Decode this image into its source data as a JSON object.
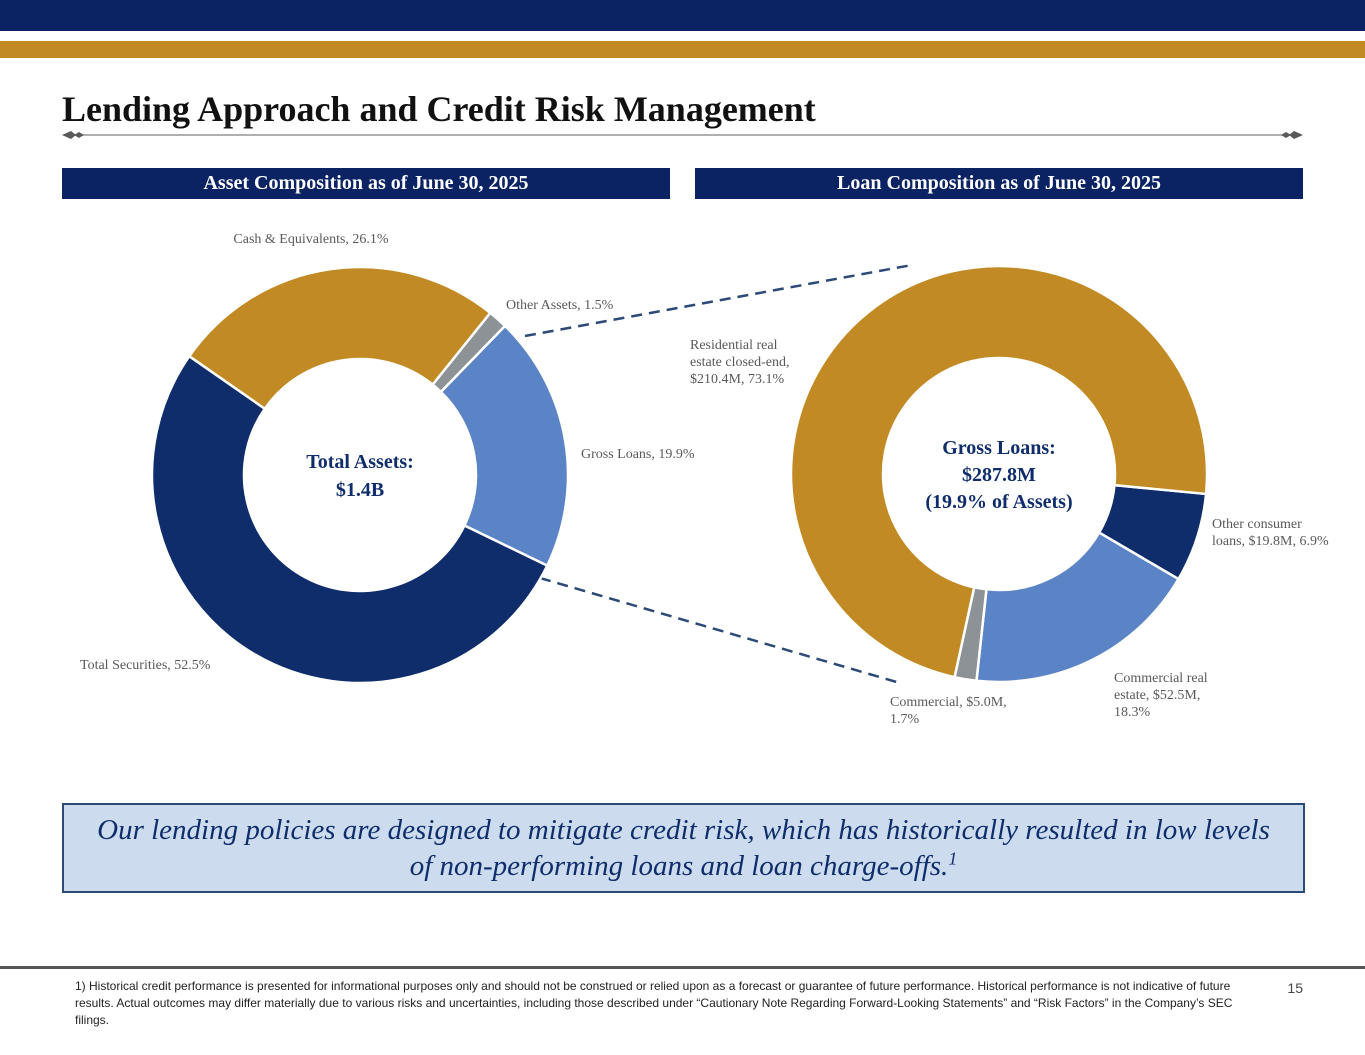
{
  "slide": {
    "title": "Lending Approach and Credit Risk Management",
    "left_header": "Asset Composition as of June 30, 2025",
    "right_header": "Loan Composition as of June 30, 2025",
    "callout": {
      "text": "Our lending policies are designed to mitigate credit risk, which has historically resulted in low levels of non-performing loans and loan charge-offs.",
      "superscript": "1"
    },
    "footnote": "1) Historical credit performance is presented for informational purposes only and should not be construed or relied upon as a forecast or guarantee of future performance. Historical performance is not indicative of future results. Actual outcomes may differ materially due to various risks and uncertainties, including those described under “Cautionary Note Regarding Forward-Looking Statements” and “Risk Factors” in the Company’s SEC filings.",
    "page_number": "15"
  },
  "colors": {
    "navy": "#0b2263",
    "gold": "#c28a25",
    "light_blue": "#5b84c7",
    "gray": "#8d9296",
    "callout_fill": "#ccdcee"
  },
  "chart_data": [
    {
      "type": "pie",
      "variant": "donut",
      "title": "Asset Composition as of June 30, 2025",
      "center_label": [
        "Total Assets:",
        "$1.4B"
      ],
      "slices": [
        {
          "label": "Gross Loans, 19.9%",
          "value": 19.9,
          "color": "#5b84c7"
        },
        {
          "label": "Total Securities, 52.5%",
          "value": 52.5,
          "color": "#0f2d6b"
        },
        {
          "label": "Cash & Equivalents, 26.1%",
          "value": 26.1,
          "color": "#c28a25"
        },
        {
          "label": "Other Assets, 1.5%",
          "value": 1.5,
          "color": "#8d9296"
        }
      ]
    },
    {
      "type": "pie",
      "variant": "donut",
      "title": "Loan Composition as of June 30, 2025",
      "center_label": [
        "Gross Loans:",
        "$287.8M",
        "(19.9% of Assets)"
      ],
      "slices": [
        {
          "label": [
            "Other consumer",
            "loans, $19.8M, 6.9%"
          ],
          "value": 6.9,
          "color": "#0f2d6b"
        },
        {
          "label": [
            "Commercial real",
            "estate, $52.5M,",
            "18.3%"
          ],
          "value": 18.3,
          "color": "#5b84c7"
        },
        {
          "label": [
            "Commercial, $5.0M,",
            "1.7%"
          ],
          "value": 1.7,
          "color": "#8d9296"
        },
        {
          "label": [
            "Residential real",
            "estate closed-end,",
            "$210.4M, 73.1%"
          ],
          "value": 73.1,
          "color": "#c28a25"
        }
      ]
    }
  ]
}
